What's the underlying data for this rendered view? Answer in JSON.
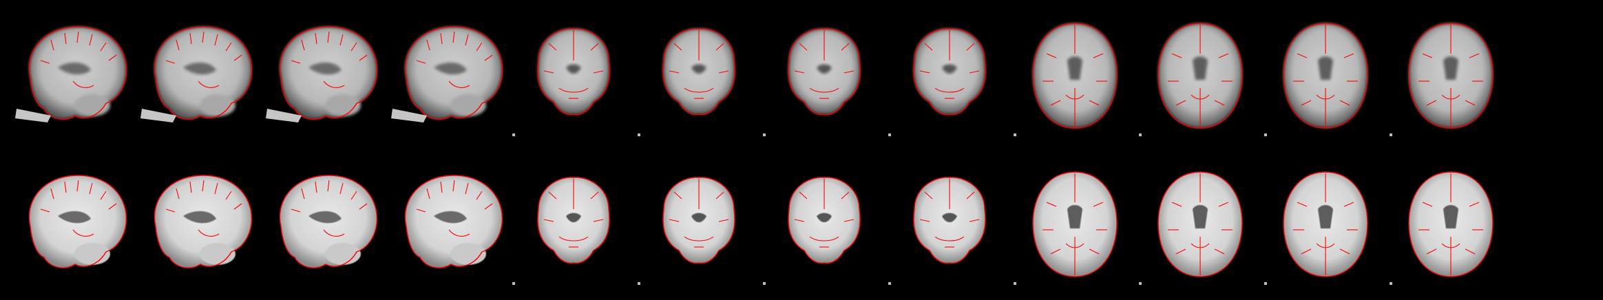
{
  "figure": {
    "background_color": "#000000",
    "contour_color": "#ff0000",
    "rows": [
      {
        "name": "epi-to-template-registration",
        "panels": [
          {
            "view": "sagittal"
          },
          {
            "view": "sagittal"
          },
          {
            "view": "sagittal"
          },
          {
            "view": "sagittal"
          },
          {
            "view": "coronal"
          },
          {
            "view": "coronal"
          },
          {
            "view": "coronal"
          },
          {
            "view": "coronal"
          },
          {
            "view": "axial"
          },
          {
            "view": "axial"
          },
          {
            "view": "axial"
          },
          {
            "view": "axial"
          }
        ]
      },
      {
        "name": "template-with-edge-overlay",
        "panels": [
          {
            "view": "sagittal"
          },
          {
            "view": "sagittal"
          },
          {
            "view": "sagittal"
          },
          {
            "view": "sagittal"
          },
          {
            "view": "coronal"
          },
          {
            "view": "coronal"
          },
          {
            "view": "coronal"
          },
          {
            "view": "coronal"
          },
          {
            "view": "axial"
          },
          {
            "view": "axial"
          },
          {
            "view": "axial"
          },
          {
            "view": "axial"
          }
        ]
      }
    ]
  }
}
